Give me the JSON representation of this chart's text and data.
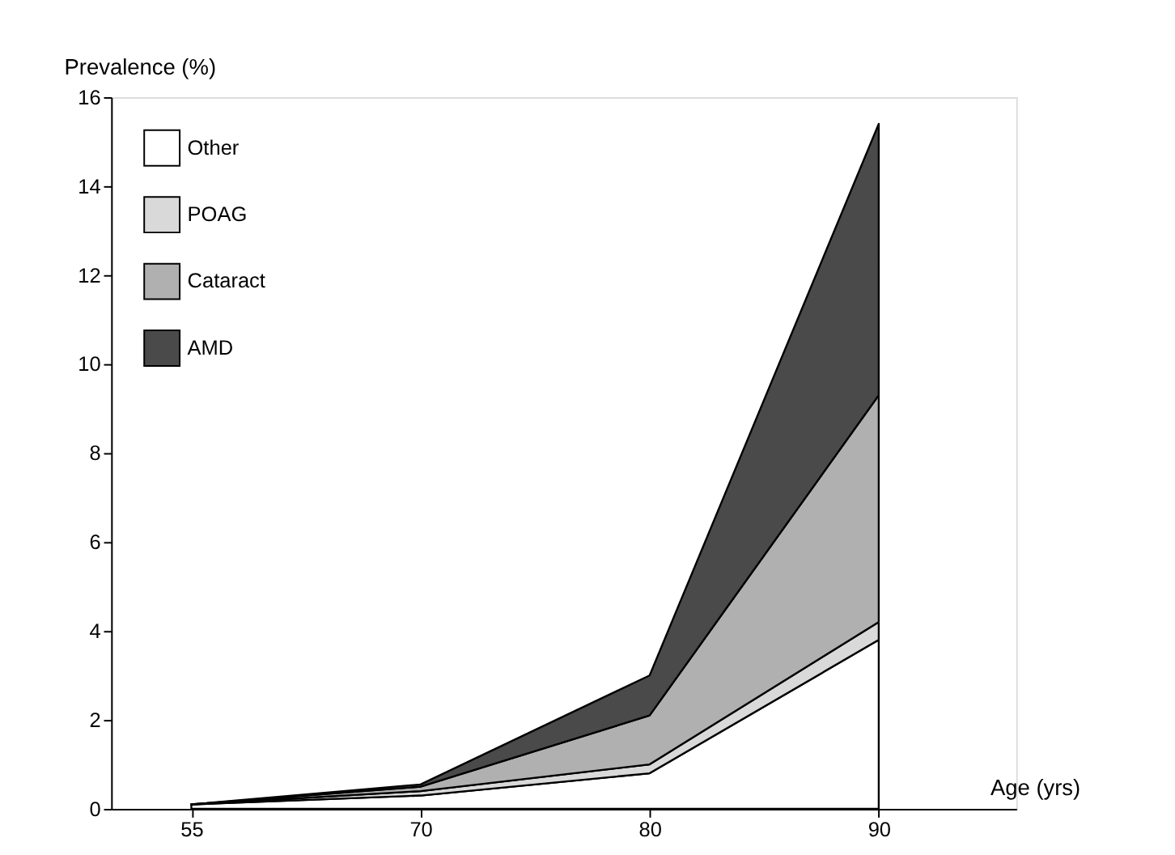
{
  "chart_data": {
    "type": "area",
    "stacked": true,
    "xlabel": "Age (yrs)",
    "ylabel": "Prevalence (%)",
    "categories": [
      "55",
      "70",
      "80",
      "90"
    ],
    "series": [
      {
        "name": "Other",
        "color": "#ffffff",
        "values": [
          0.1,
          0.3,
          0.8,
          3.8
        ]
      },
      {
        "name": "POAG",
        "color": "#d9d9d9",
        "values": [
          0,
          0.1,
          0.2,
          0.4
        ]
      },
      {
        "name": "Cataract",
        "color": "#b0b0b0",
        "values": [
          0,
          0.1,
          1.1,
          5.1
        ]
      },
      {
        "name": "AMD",
        "color": "#4a4a4a",
        "values": [
          0,
          0.05,
          0.9,
          6.1
        ]
      }
    ],
    "ylim": [
      0,
      16
    ],
    "yticks": [
      0,
      2,
      4,
      6,
      8,
      10,
      12,
      14,
      16
    ],
    "grid": false,
    "legend": "top left"
  }
}
